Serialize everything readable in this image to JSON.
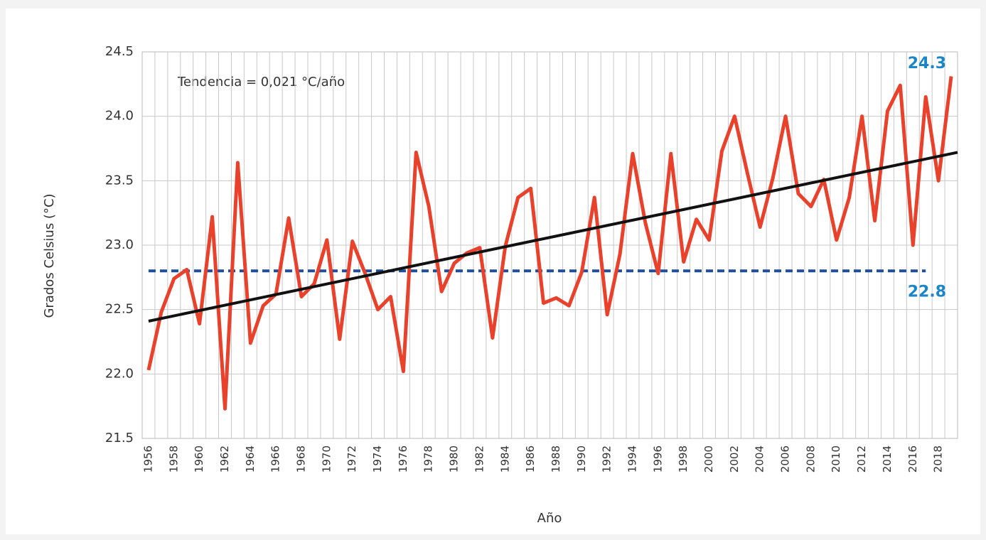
{
  "chart_data": {
    "type": "line",
    "annotation": "Tendencia = 0,021 °C/año",
    "ylabel": "Grados Celsius (°C)",
    "xlabel": "Año",
    "categories": [
      "1956",
      null,
      "1958",
      null,
      "1960",
      null,
      "1962",
      null,
      "1964",
      null,
      "1966",
      null,
      "1968",
      null,
      "1970",
      null,
      "1972",
      null,
      "1974",
      null,
      "1976",
      null,
      "1978",
      null,
      "1980",
      null,
      "1982",
      null,
      "1984",
      null,
      "1986",
      null,
      "1988",
      null,
      "1990",
      null,
      "1992",
      null,
      "1994",
      null,
      "1996",
      null,
      "1998",
      null,
      "2000",
      null,
      "2002",
      null,
      "2004",
      null,
      "2006",
      null,
      "2008",
      null,
      "2010",
      null,
      "2012",
      null,
      "2014",
      null,
      "2016",
      null,
      "2018",
      null
    ],
    "series": [
      {
        "color": "#e8412c",
        "values": [
          22.03,
          22.48,
          22.74,
          22.81,
          22.39,
          23.22,
          21.73,
          23.64,
          22.24,
          22.53,
          22.62,
          23.21,
          22.6,
          22.7,
          23.04,
          22.27,
          23.03,
          22.78,
          22.5,
          22.6,
          22.02,
          23.72,
          23.3,
          22.64,
          22.86,
          22.94,
          22.98,
          22.28,
          22.99,
          23.37,
          23.44,
          22.55,
          22.59,
          22.53,
          22.79,
          23.37,
          22.46,
          22.93,
          23.71,
          23.17,
          22.78,
          23.71,
          22.87,
          23.2,
          23.04,
          23.73,
          24.0,
          23.56,
          23.14,
          23.52,
          24.0,
          23.4,
          23.3,
          23.51,
          23.04,
          23.37,
          24.0,
          23.19,
          24.04,
          24.24,
          23.0,
          24.15,
          23.5,
          24.31
        ],
        "last_label": 24.3
      }
    ],
    "trend": {
      "color": "#111111",
      "values": [
        22.41,
        23.72
      ]
    },
    "mean": {
      "color": "#1f4e9c",
      "value": 22.8
    },
    "label_color": "#1a86c8",
    "ylim": [
      21.5,
      24.5
    ],
    "yticks": [
      21.5,
      {
        "value": 22,
        "label": "22.0"
      },
      22.5,
      {
        "value": 23,
        "label": "23.0"
      },
      23.5,
      {
        "value": 24,
        "label": "24.0"
      },
      24.5
    ],
    "grid": true
  }
}
